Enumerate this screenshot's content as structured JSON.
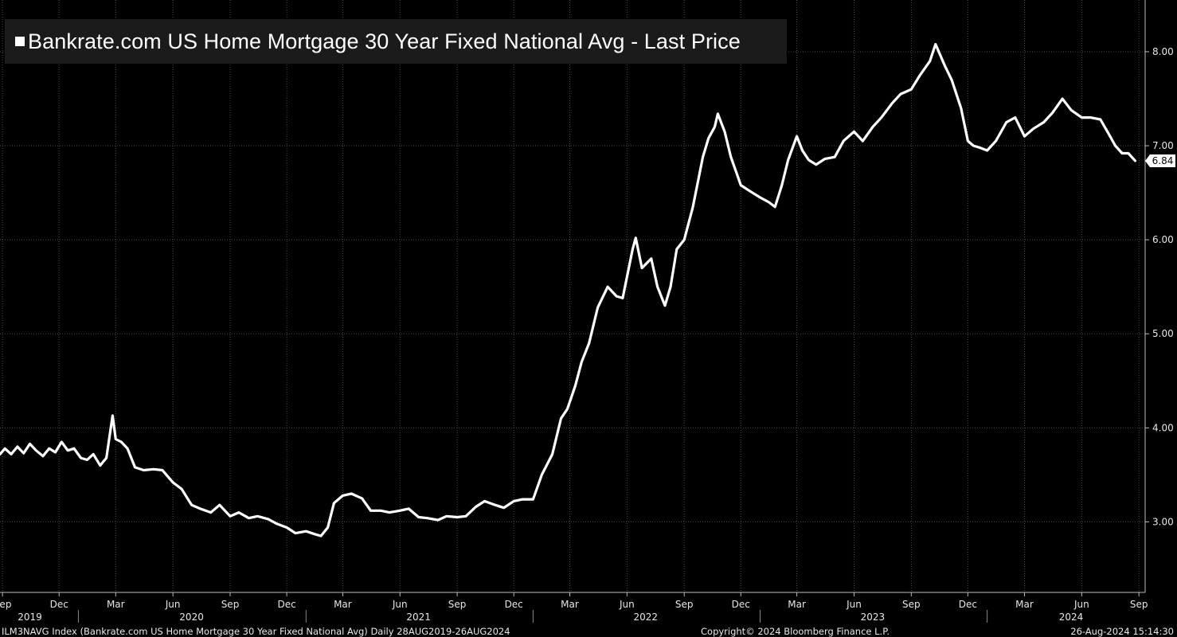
{
  "legend": {
    "label": "Bankrate.com US Home Mortgage 30 Year Fixed National Avg - Last Price"
  },
  "footer": {
    "left": "ILM3NAVG Index (Bankrate.com US Home Mortgage 30 Year Fixed National Avg)  Daily 28AUG2019-26AUG2024",
    "center": "Copyright© 2024 Bloomberg Finance L.P.",
    "right": "26-Aug-2024 15:14:30"
  },
  "chart_data": {
    "type": "line",
    "title": "Bankrate.com US Home Mortgage 30 Year Fixed National Avg - Last Price",
    "xlabel": "",
    "ylabel": "",
    "ylim": [
      2.25,
      8.55
    ],
    "xlim": [
      "2019-08-28",
      "2024-09-11"
    ],
    "grid": true,
    "legend_position": "top-left",
    "last_value_label": "6.84",
    "y_ticks": [
      "3.00",
      "4.00",
      "5.00",
      "6.00",
      "7.00",
      "8.00"
    ],
    "x_month_ticks": [
      {
        "label": "Sep",
        "date": "2019-09-01"
      },
      {
        "label": "Dec",
        "date": "2019-12-01"
      },
      {
        "label": "Mar",
        "date": "2020-03-01"
      },
      {
        "label": "Jun",
        "date": "2020-06-01"
      },
      {
        "label": "Sep",
        "date": "2020-09-01"
      },
      {
        "label": "Dec",
        "date": "2020-12-01"
      },
      {
        "label": "Mar",
        "date": "2021-03-01"
      },
      {
        "label": "Jun",
        "date": "2021-06-01"
      },
      {
        "label": "Sep",
        "date": "2021-09-01"
      },
      {
        "label": "Dec",
        "date": "2021-12-01"
      },
      {
        "label": "Mar",
        "date": "2022-03-01"
      },
      {
        "label": "Jun",
        "date": "2022-06-01"
      },
      {
        "label": "Sep",
        "date": "2022-09-01"
      },
      {
        "label": "Dec",
        "date": "2022-12-01"
      },
      {
        "label": "Mar",
        "date": "2023-03-01"
      },
      {
        "label": "Jun",
        "date": "2023-06-01"
      },
      {
        "label": "Sep",
        "date": "2023-09-01"
      },
      {
        "label": "Dec",
        "date": "2023-12-01"
      },
      {
        "label": "Mar",
        "date": "2024-03-01"
      },
      {
        "label": "Jun",
        "date": "2024-06-01"
      },
      {
        "label": "Sep",
        "date": "2024-09-01"
      }
    ],
    "x_year_ticks": [
      {
        "label": "2019",
        "date": "2019-10-15"
      },
      {
        "label": "2020",
        "date": "2020-07-01"
      },
      {
        "label": "2021",
        "date": "2021-07-01"
      },
      {
        "label": "2022",
        "date": "2022-07-01"
      },
      {
        "label": "2023",
        "date": "2023-07-01"
      },
      {
        "label": "2024",
        "date": "2024-05-15"
      }
    ],
    "x_year_separators": [
      "2020-01-01",
      "2021-01-01",
      "2022-01-01",
      "2023-01-01",
      "2024-01-01"
    ],
    "series": [
      {
        "color": "#ffffff",
        "points": [
          [
            "2019-08-28",
            3.72
          ],
          [
            "2019-09-05",
            3.78
          ],
          [
            "2019-09-15",
            3.72
          ],
          [
            "2019-09-25",
            3.8
          ],
          [
            "2019-10-05",
            3.73
          ],
          [
            "2019-10-15",
            3.83
          ],
          [
            "2019-10-25",
            3.76
          ],
          [
            "2019-11-05",
            3.7
          ],
          [
            "2019-11-15",
            3.78
          ],
          [
            "2019-11-25",
            3.74
          ],
          [
            "2019-12-05",
            3.85
          ],
          [
            "2019-12-15",
            3.76
          ],
          [
            "2019-12-25",
            3.78
          ],
          [
            "2020-01-05",
            3.68
          ],
          [
            "2020-01-15",
            3.66
          ],
          [
            "2020-01-25",
            3.72
          ],
          [
            "2020-02-05",
            3.6
          ],
          [
            "2020-02-15",
            3.68
          ],
          [
            "2020-02-25",
            4.13
          ],
          [
            "2020-03-01",
            3.88
          ],
          [
            "2020-03-10",
            3.85
          ],
          [
            "2020-03-20",
            3.78
          ],
          [
            "2020-04-01",
            3.58
          ],
          [
            "2020-04-15",
            3.55
          ],
          [
            "2020-05-01",
            3.56
          ],
          [
            "2020-05-15",
            3.55
          ],
          [
            "2020-06-01",
            3.42
          ],
          [
            "2020-06-15",
            3.35
          ],
          [
            "2020-07-01",
            3.18
          ],
          [
            "2020-07-15",
            3.14
          ],
          [
            "2020-08-01",
            3.1
          ],
          [
            "2020-08-15",
            3.18
          ],
          [
            "2020-09-01",
            3.06
          ],
          [
            "2020-09-15",
            3.1
          ],
          [
            "2020-10-01",
            3.04
          ],
          [
            "2020-10-15",
            3.06
          ],
          [
            "2020-11-01",
            3.03
          ],
          [
            "2020-11-15",
            2.98
          ],
          [
            "2020-12-01",
            2.94
          ],
          [
            "2020-12-15",
            2.88
          ],
          [
            "2021-01-01",
            2.9
          ],
          [
            "2021-01-15",
            2.87
          ],
          [
            "2021-01-25",
            2.85
          ],
          [
            "2021-02-05",
            2.94
          ],
          [
            "2021-02-15",
            3.2
          ],
          [
            "2021-03-01",
            3.28
          ],
          [
            "2021-03-15",
            3.3
          ],
          [
            "2021-04-01",
            3.25
          ],
          [
            "2021-04-15",
            3.12
          ],
          [
            "2021-05-01",
            3.12
          ],
          [
            "2021-05-15",
            3.1
          ],
          [
            "2021-06-01",
            3.12
          ],
          [
            "2021-06-15",
            3.14
          ],
          [
            "2021-07-01",
            3.05
          ],
          [
            "2021-07-15",
            3.04
          ],
          [
            "2021-08-01",
            3.02
          ],
          [
            "2021-08-15",
            3.06
          ],
          [
            "2021-09-01",
            3.05
          ],
          [
            "2021-09-15",
            3.06
          ],
          [
            "2021-10-01",
            3.16
          ],
          [
            "2021-10-15",
            3.22
          ],
          [
            "2021-11-01",
            3.18
          ],
          [
            "2021-11-15",
            3.15
          ],
          [
            "2021-12-01",
            3.22
          ],
          [
            "2021-12-15",
            3.24
          ],
          [
            "2022-01-01",
            3.24
          ],
          [
            "2022-01-15",
            3.5
          ],
          [
            "2022-02-01",
            3.72
          ],
          [
            "2022-02-15",
            4.1
          ],
          [
            "2022-02-25",
            4.2
          ],
          [
            "2022-03-10",
            4.45
          ],
          [
            "2022-03-20",
            4.7
          ],
          [
            "2022-04-01",
            4.9
          ],
          [
            "2022-04-15",
            5.28
          ],
          [
            "2022-05-01",
            5.5
          ],
          [
            "2022-05-15",
            5.4
          ],
          [
            "2022-05-25",
            5.38
          ],
          [
            "2022-06-10",
            5.9
          ],
          [
            "2022-06-15",
            6.02
          ],
          [
            "2022-06-25",
            5.7
          ],
          [
            "2022-07-10",
            5.8
          ],
          [
            "2022-07-20",
            5.5
          ],
          [
            "2022-08-01",
            5.3
          ],
          [
            "2022-08-10",
            5.5
          ],
          [
            "2022-08-20",
            5.9
          ],
          [
            "2022-09-01",
            6.0
          ],
          [
            "2022-09-15",
            6.35
          ],
          [
            "2022-10-01",
            6.88
          ],
          [
            "2022-10-10",
            7.08
          ],
          [
            "2022-10-20",
            7.2
          ],
          [
            "2022-10-25",
            7.34
          ],
          [
            "2022-11-05",
            7.15
          ],
          [
            "2022-11-15",
            6.88
          ],
          [
            "2022-12-01",
            6.58
          ],
          [
            "2022-12-15",
            6.52
          ],
          [
            "2023-01-01",
            6.45
          ],
          [
            "2023-01-15",
            6.4
          ],
          [
            "2023-01-25",
            6.35
          ],
          [
            "2023-02-05",
            6.58
          ],
          [
            "2023-02-15",
            6.85
          ],
          [
            "2023-03-01",
            7.1
          ],
          [
            "2023-03-10",
            6.95
          ],
          [
            "2023-03-20",
            6.85
          ],
          [
            "2023-04-01",
            6.8
          ],
          [
            "2023-04-15",
            6.86
          ],
          [
            "2023-05-01",
            6.88
          ],
          [
            "2023-05-15",
            7.05
          ],
          [
            "2023-06-01",
            7.15
          ],
          [
            "2023-06-15",
            7.05
          ],
          [
            "2023-07-01",
            7.2
          ],
          [
            "2023-07-15",
            7.3
          ],
          [
            "2023-08-01",
            7.45
          ],
          [
            "2023-08-15",
            7.55
          ],
          [
            "2023-09-01",
            7.6
          ],
          [
            "2023-09-15",
            7.75
          ],
          [
            "2023-10-01",
            7.9
          ],
          [
            "2023-10-10",
            8.08
          ],
          [
            "2023-10-25",
            7.85
          ],
          [
            "2023-11-05",
            7.7
          ],
          [
            "2023-11-20",
            7.4
          ],
          [
            "2023-12-01",
            7.05
          ],
          [
            "2023-12-10",
            7.0
          ],
          [
            "2023-12-20",
            6.98
          ],
          [
            "2024-01-01",
            6.95
          ],
          [
            "2024-01-15",
            7.05
          ],
          [
            "2024-02-01",
            7.25
          ],
          [
            "2024-02-15",
            7.3
          ],
          [
            "2024-03-01",
            7.1
          ],
          [
            "2024-03-15",
            7.18
          ],
          [
            "2024-04-01",
            7.25
          ],
          [
            "2024-04-15",
            7.35
          ],
          [
            "2024-05-01",
            7.5
          ],
          [
            "2024-05-15",
            7.38
          ],
          [
            "2024-06-01",
            7.3
          ],
          [
            "2024-06-15",
            7.3
          ],
          [
            "2024-07-01",
            7.28
          ],
          [
            "2024-07-15",
            7.12
          ],
          [
            "2024-07-25",
            7.0
          ],
          [
            "2024-08-05",
            6.92
          ],
          [
            "2024-08-15",
            6.92
          ],
          [
            "2024-08-26",
            6.84
          ]
        ]
      }
    ]
  }
}
